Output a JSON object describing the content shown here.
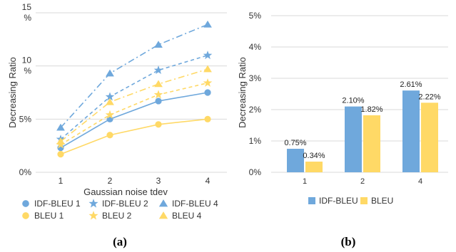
{
  "colors": {
    "blue": "#6fa8dc",
    "yellow": "#ffd966",
    "grid": "#d9d9d9"
  },
  "chart_data": [
    {
      "type": "line",
      "caption": "(a)",
      "xlabel": "Gaussian noise tdev",
      "ylabel": "Decreasing Ratio",
      "x": [
        1,
        2,
        3,
        4
      ],
      "ylim": [
        0,
        15
      ],
      "yticks": [
        {
          "value": 0,
          "lines": [
            "0%"
          ]
        },
        {
          "value": 5,
          "lines": [
            "5%"
          ]
        },
        {
          "value": 10,
          "lines": [
            "10",
            "%"
          ]
        },
        {
          "value": 15,
          "lines": [
            "15",
            "%"
          ]
        }
      ],
      "grid": true,
      "legend_position": "bottom",
      "series": [
        {
          "name": "IDF-BLEU 1",
          "color": "blue",
          "marker": "circle",
          "dash": "solid",
          "values": [
            2.3,
            5.0,
            6.7,
            7.5
          ]
        },
        {
          "name": "IDF-BLEU 2",
          "color": "blue",
          "marker": "star",
          "dash": "dashed",
          "values": [
            3.1,
            7.1,
            9.6,
            11.0
          ]
        },
        {
          "name": "IDF-BLEU 4",
          "color": "blue",
          "marker": "triangle",
          "dash": "dashdot",
          "values": [
            4.2,
            9.3,
            12.0,
            13.9
          ]
        },
        {
          "name": "BLEU 1",
          "color": "yellow",
          "marker": "circle",
          "dash": "solid",
          "values": [
            1.7,
            3.5,
            4.5,
            5.0
          ]
        },
        {
          "name": "BLEU 2",
          "color": "yellow",
          "marker": "star",
          "dash": "dashed",
          "values": [
            2.6,
            5.4,
            7.3,
            8.4
          ]
        },
        {
          "name": "BLEU 4",
          "color": "yellow",
          "marker": "triangle",
          "dash": "dashdot",
          "values": [
            2.9,
            6.6,
            8.3,
            9.7
          ]
        }
      ]
    },
    {
      "type": "bar",
      "caption": "(b)",
      "xlabel": "",
      "ylabel": "Decreasing Ratio",
      "categories": [
        "1",
        "2",
        "4"
      ],
      "ylim": [
        0,
        5
      ],
      "yticks": [
        "0%",
        "1%",
        "2%",
        "3%",
        "4%",
        "5%"
      ],
      "grid": true,
      "legend_position": "bottom",
      "series": [
        {
          "name": "IDF-BLEU",
          "color": "blue",
          "values": [
            0.75,
            2.1,
            2.61
          ],
          "labels": [
            "0.75%",
            "2.10%",
            "2.61%"
          ]
        },
        {
          "name": "BLEU",
          "color": "yellow",
          "values": [
            0.34,
            1.82,
            2.22
          ],
          "labels": [
            "0.34%",
            "1.82%",
            "2.22%"
          ]
        }
      ]
    }
  ]
}
